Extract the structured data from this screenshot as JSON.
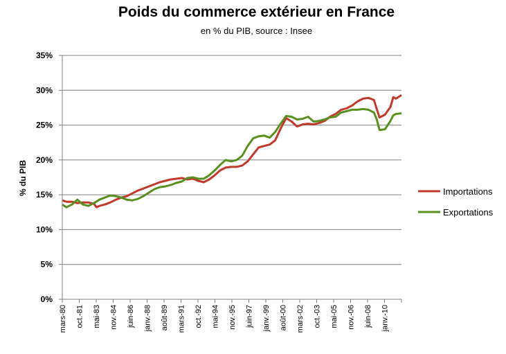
{
  "chart_data": {
    "type": "line",
    "title": "Poids du commerce extérieur en France",
    "subtitle": "en % du PIB, source : Insee",
    "ylabel": "% du PIB",
    "xlabel": "",
    "ylim": [
      0,
      35
    ],
    "yticks": [
      "0%",
      "5%",
      "10%",
      "15%",
      "20%",
      "25%",
      "30%",
      "35%"
    ],
    "grid": true,
    "legend": "right",
    "xticks": [
      "mars-80",
      "oct.-81",
      "mai-83",
      "nov.-84",
      "juin-86",
      "janv.-88",
      "août-89",
      "mars-91",
      "oct.-92",
      "mai-94",
      "nov.-95",
      "juin-97",
      "janv.-99",
      "août-00",
      "mars-02",
      "oct.-03",
      "mai-05",
      "nov.-06",
      "juin-08",
      "janv.-10"
    ],
    "x_range": [
      1980.125,
      2011.0
    ],
    "series": [
      {
        "name": "Importations",
        "color": "#c0392b",
        "points": [
          [
            1980.125,
            14.2
          ],
          [
            1980.5,
            14.0
          ],
          [
            1981.0,
            14.0
          ],
          [
            1981.5,
            13.8
          ],
          [
            1982.0,
            13.9
          ],
          [
            1982.5,
            13.9
          ],
          [
            1983.0,
            13.7
          ],
          [
            1983.25,
            13.2
          ],
          [
            1983.5,
            13.4
          ],
          [
            1984.0,
            13.6
          ],
          [
            1984.5,
            13.9
          ],
          [
            1985.0,
            14.3
          ],
          [
            1985.5,
            14.6
          ],
          [
            1986.0,
            14.8
          ],
          [
            1986.5,
            15.2
          ],
          [
            1987.0,
            15.6
          ],
          [
            1987.5,
            15.9
          ],
          [
            1988.0,
            16.2
          ],
          [
            1988.5,
            16.5
          ],
          [
            1989.0,
            16.8
          ],
          [
            1989.5,
            17.0
          ],
          [
            1990.0,
            17.2
          ],
          [
            1990.5,
            17.3
          ],
          [
            1991.0,
            17.4
          ],
          [
            1991.5,
            17.2
          ],
          [
            1992.0,
            17.3
          ],
          [
            1992.5,
            17.0
          ],
          [
            1993.0,
            16.8
          ],
          [
            1993.5,
            17.2
          ],
          [
            1994.0,
            17.8
          ],
          [
            1994.5,
            18.5
          ],
          [
            1995.0,
            18.9
          ],
          [
            1995.5,
            19.0
          ],
          [
            1996.0,
            19.0
          ],
          [
            1996.5,
            19.2
          ],
          [
            1997.0,
            19.8
          ],
          [
            1997.5,
            20.8
          ],
          [
            1998.0,
            21.8
          ],
          [
            1998.5,
            22.0
          ],
          [
            1999.0,
            22.2
          ],
          [
            1999.5,
            22.8
          ],
          [
            2000.0,
            24.5
          ],
          [
            2000.5,
            26.0
          ],
          [
            2001.0,
            25.5
          ],
          [
            2001.5,
            24.8
          ],
          [
            2002.0,
            25.1
          ],
          [
            2002.5,
            25.2
          ],
          [
            2003.0,
            25.1
          ],
          [
            2003.5,
            25.3
          ],
          [
            2004.0,
            25.6
          ],
          [
            2004.5,
            26.2
          ],
          [
            2005.0,
            26.6
          ],
          [
            2005.5,
            27.2
          ],
          [
            2006.0,
            27.4
          ],
          [
            2006.5,
            27.8
          ],
          [
            2007.0,
            28.4
          ],
          [
            2007.5,
            28.8
          ],
          [
            2008.0,
            28.9
          ],
          [
            2008.5,
            28.6
          ],
          [
            2008.75,
            27.3
          ],
          [
            2009.0,
            26.1
          ],
          [
            2009.5,
            26.5
          ],
          [
            2010.0,
            27.6
          ],
          [
            2010.25,
            29.0
          ],
          [
            2010.5,
            28.8
          ],
          [
            2011.0,
            29.3
          ]
        ]
      },
      {
        "name": "Exportations",
        "color": "#5a8f1f",
        "points": [
          [
            1980.125,
            13.6
          ],
          [
            1980.5,
            13.2
          ],
          [
            1981.0,
            13.6
          ],
          [
            1981.5,
            14.3
          ],
          [
            1982.0,
            13.6
          ],
          [
            1982.5,
            13.4
          ],
          [
            1983.0,
            13.8
          ],
          [
            1983.5,
            14.3
          ],
          [
            1984.0,
            14.6
          ],
          [
            1984.5,
            14.9
          ],
          [
            1985.0,
            14.8
          ],
          [
            1985.5,
            14.6
          ],
          [
            1986.0,
            14.3
          ],
          [
            1986.5,
            14.2
          ],
          [
            1987.0,
            14.4
          ],
          [
            1987.5,
            14.8
          ],
          [
            1988.0,
            15.3
          ],
          [
            1988.5,
            15.8
          ],
          [
            1989.0,
            16.1
          ],
          [
            1989.5,
            16.2
          ],
          [
            1990.0,
            16.4
          ],
          [
            1990.5,
            16.7
          ],
          [
            1991.0,
            16.9
          ],
          [
            1991.5,
            17.4
          ],
          [
            1992.0,
            17.5
          ],
          [
            1992.5,
            17.3
          ],
          [
            1993.0,
            17.3
          ],
          [
            1993.5,
            17.8
          ],
          [
            1994.0,
            18.5
          ],
          [
            1994.5,
            19.3
          ],
          [
            1995.0,
            20.0
          ],
          [
            1995.5,
            19.8
          ],
          [
            1996.0,
            20.0
          ],
          [
            1996.5,
            20.6
          ],
          [
            1997.0,
            22.0
          ],
          [
            1997.5,
            23.1
          ],
          [
            1998.0,
            23.4
          ],
          [
            1998.5,
            23.5
          ],
          [
            1999.0,
            23.2
          ],
          [
            1999.5,
            24.0
          ],
          [
            2000.0,
            25.2
          ],
          [
            2000.5,
            26.3
          ],
          [
            2001.0,
            26.2
          ],
          [
            2001.5,
            25.8
          ],
          [
            2002.0,
            25.9
          ],
          [
            2002.5,
            26.2
          ],
          [
            2003.0,
            25.5
          ],
          [
            2003.5,
            25.6
          ],
          [
            2004.0,
            25.8
          ],
          [
            2004.5,
            26.1
          ],
          [
            2005.0,
            26.2
          ],
          [
            2005.5,
            26.8
          ],
          [
            2006.0,
            27.0
          ],
          [
            2006.5,
            27.2
          ],
          [
            2007.0,
            27.2
          ],
          [
            2007.5,
            27.3
          ],
          [
            2008.0,
            27.2
          ],
          [
            2008.5,
            26.8
          ],
          [
            2008.75,
            25.8
          ],
          [
            2009.0,
            24.3
          ],
          [
            2009.5,
            24.4
          ],
          [
            2010.0,
            25.6
          ],
          [
            2010.25,
            26.4
          ],
          [
            2010.5,
            26.6
          ],
          [
            2011.0,
            26.7
          ]
        ]
      }
    ]
  }
}
